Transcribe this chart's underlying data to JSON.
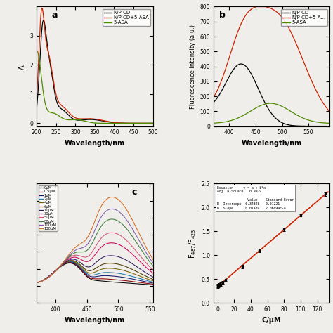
{
  "panel_a": {
    "label": "a",
    "xlabel": "Wavelength/nm",
    "ylabel": "A.",
    "xlim": [
      200,
      500
    ],
    "ylim": [
      -0.1,
      4.0
    ],
    "yticks": [
      0,
      1,
      2,
      3
    ],
    "xticks": [
      200,
      250,
      300,
      350,
      400,
      450,
      500
    ],
    "legend": [
      "N/P-CD",
      "N/P-CD+5-ASA",
      "5-ASA"
    ],
    "colors": [
      "#000000",
      "#cc2200",
      "#4e8b00"
    ]
  },
  "panel_b": {
    "label": "b",
    "xlabel": "Wavelength/nm",
    "ylabel": "Fluorescence intensity (a.u.)",
    "xlim": [
      370,
      590
    ],
    "ylim": [
      0,
      800
    ],
    "yticks": [
      0,
      100,
      200,
      300,
      400,
      500,
      600,
      700,
      800
    ],
    "xticks": [
      400,
      450,
      500,
      550
    ],
    "legend": [
      "N/P-CD",
      "N/P-CD+5-A...",
      "5-ASA"
    ],
    "colors": [
      "#000000",
      "#cc2200",
      "#4e8b00"
    ]
  },
  "panel_c": {
    "label": "c",
    "xlabel": "Wavelength/nm",
    "xlim": [
      370,
      555
    ],
    "ylim": [
      -100,
      600
    ],
    "xticks": [
      400,
      450,
      500,
      550
    ],
    "legend_labels": [
      "0μM",
      "0.5μM",
      "1μM",
      "2μM",
      "4μM",
      "6μM",
      "10μM",
      "30μM",
      "50μM",
      "80μM",
      "100μM",
      "130μM"
    ],
    "legend_colors": [
      "#000000",
      "#8b0000",
      "#191970",
      "#1e7ab0",
      "#7a6200",
      "#4a3800",
      "#2d1b5e",
      "#c8005a",
      "#d4547a",
      "#3a7d3a",
      "#7b5ea7",
      "#d2691e"
    ]
  },
  "panel_d": {
    "xlabel": "C/μM",
    "ylabel": "F$_{487}$/F$_{423}$",
    "xlim": [
      -5,
      135
    ],
    "ylim": [
      0.0,
      2.5
    ],
    "yticks": [
      0.0,
      0.5,
      1.0,
      1.5,
      2.0,
      2.5
    ],
    "xticks": [
      0,
      20,
      40,
      60,
      80,
      100,
      120
    ],
    "equation": "y = a + b*x",
    "adj_r2": "0.9979",
    "intercept_val": "0.34328",
    "intercept_err": "0.01221",
    "slope_val": "0.01489",
    "slope_err": "2.06094E-4",
    "line_color": "#cc2200",
    "point_color": "#000000"
  },
  "background_color": "#f0eeea"
}
